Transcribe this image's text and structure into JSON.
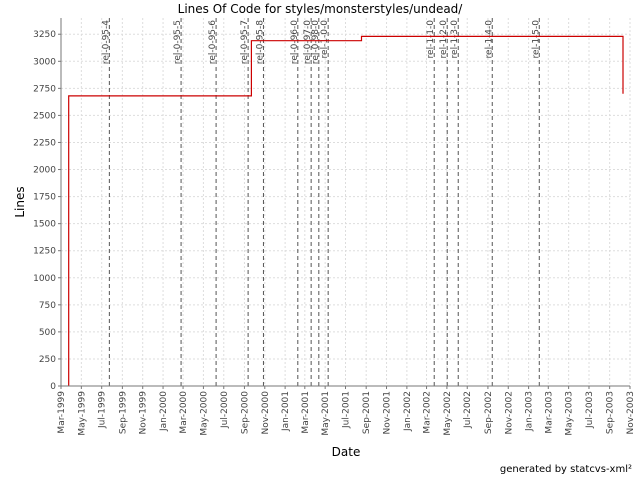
{
  "chart_data": {
    "type": "line",
    "title": "Lines Of Code for styles/monsterstyles/undead/",
    "xlabel": "Date",
    "ylabel": "Lines",
    "ylim": [
      0,
      3400
    ],
    "yticks": [
      0,
      250,
      500,
      750,
      1000,
      1250,
      1500,
      1750,
      2000,
      2250,
      2500,
      2750,
      3000,
      3250
    ],
    "xlim": [
      "1999-03-01",
      "2003-11-01"
    ],
    "xticks": [
      {
        "date": "1999-03-01",
        "label": "Mar-1999"
      },
      {
        "date": "1999-05-01",
        "label": "May-1999"
      },
      {
        "date": "1999-07-01",
        "label": "Jul-1999"
      },
      {
        "date": "1999-09-01",
        "label": "Sep-1999"
      },
      {
        "date": "1999-11-01",
        "label": "Nov-1999"
      },
      {
        "date": "2000-01-01",
        "label": "Jan-2000"
      },
      {
        "date": "2000-03-01",
        "label": "Mar-2000"
      },
      {
        "date": "2000-05-01",
        "label": "May-2000"
      },
      {
        "date": "2000-07-01",
        "label": "Jul-2000"
      },
      {
        "date": "2000-09-01",
        "label": "Sep-2000"
      },
      {
        "date": "2000-11-01",
        "label": "Nov-2000"
      },
      {
        "date": "2001-01-01",
        "label": "Jan-2001"
      },
      {
        "date": "2001-03-01",
        "label": "Mar-2001"
      },
      {
        "date": "2001-05-01",
        "label": "May-2001"
      },
      {
        "date": "2001-07-01",
        "label": "Jul-2001"
      },
      {
        "date": "2001-09-01",
        "label": "Sep-2001"
      },
      {
        "date": "2001-11-01",
        "label": "Nov-2001"
      },
      {
        "date": "2002-01-01",
        "label": "Jan-2002"
      },
      {
        "date": "2002-03-01",
        "label": "Mar-2002"
      },
      {
        "date": "2002-05-01",
        "label": "May-2002"
      },
      {
        "date": "2002-07-01",
        "label": "Jul-2002"
      },
      {
        "date": "2002-09-01",
        "label": "Sep-2002"
      },
      {
        "date": "2002-11-01",
        "label": "Nov-2002"
      },
      {
        "date": "2003-01-01",
        "label": "Jan-2003"
      },
      {
        "date": "2003-03-01",
        "label": "Mar-2003"
      },
      {
        "date": "2003-05-01",
        "label": "May-2003"
      },
      {
        "date": "2003-07-01",
        "label": "Jul-2003"
      },
      {
        "date": "2003-09-01",
        "label": "Sep-2003"
      },
      {
        "date": "2003-11-01",
        "label": "Nov-2003"
      }
    ],
    "grid": true,
    "series": [
      {
        "color": "#cc0000",
        "step": true,
        "points": [
          {
            "x": "1999-03-24",
            "y": 0
          },
          {
            "x": "1999-03-24",
            "y": 2680
          },
          {
            "x": "2000-09-22",
            "y": 2680
          },
          {
            "x": "2000-09-22",
            "y": 3190
          },
          {
            "x": "2001-08-18",
            "y": 3190
          },
          {
            "x": "2001-08-18",
            "y": 3230
          },
          {
            "x": "2003-10-11",
            "y": 3230
          },
          {
            "x": "2003-10-11",
            "y": 2700
          }
        ]
      }
    ],
    "annotations": [
      {
        "x": "1999-07-24",
        "label": "rel-0-95-4"
      },
      {
        "x": "2000-02-24",
        "label": "rel-0-95-5"
      },
      {
        "x": "2000-06-08",
        "label": "rel-0-95-6"
      },
      {
        "x": "2000-09-12",
        "label": "rel-0-95-7"
      },
      {
        "x": "2000-10-28",
        "label": "rel-0-95-8"
      },
      {
        "x": "2001-02-08",
        "label": "rel-0-96-0"
      },
      {
        "x": "2001-03-20",
        "label": "rel-0-97-0"
      },
      {
        "x": "2001-04-12",
        "label": "rel-0-98-0"
      },
      {
        "x": "2001-05-10",
        "label": "rel-1-0-0"
      },
      {
        "x": "2002-03-24",
        "label": "rel-1-1-0"
      },
      {
        "x": "2002-05-02",
        "label": "rel-1-2-0"
      },
      {
        "x": "2002-06-04",
        "label": "rel-1-3-0"
      },
      {
        "x": "2002-09-14",
        "label": "rel-1-4-0"
      },
      {
        "x": "2003-02-02",
        "label": "rel-1-5-0"
      }
    ]
  },
  "footer": {
    "credit": "generated by statcvs-xml²"
  }
}
